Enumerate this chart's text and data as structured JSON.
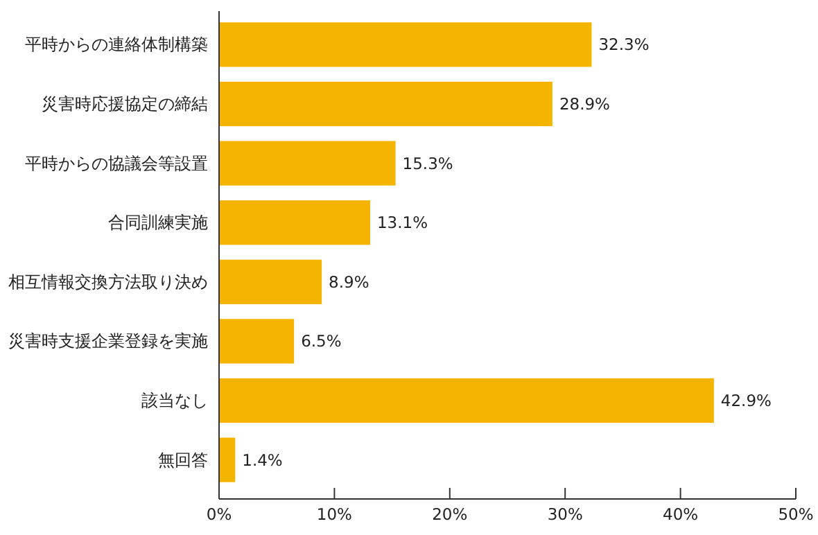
{
  "chart_data": {
    "type": "bar",
    "orientation": "horizontal",
    "categories": [
      "平時からの連絡体制構築",
      "災害時応援協定の締結",
      "平時からの協議会等設置",
      "合同訓練実施",
      "相互情報交換方法取り決め",
      "災害時支援企業登録を実施",
      "該当なし",
      "無回答"
    ],
    "values": [
      32.3,
      28.9,
      15.3,
      13.1,
      8.9,
      6.5,
      42.9,
      1.4
    ],
    "value_labels": [
      "32.3%",
      "28.9%",
      "15.3%",
      "13.1%",
      "8.9%",
      "6.5%",
      "42.9%",
      "1.4%"
    ],
    "color": "#f5b400",
    "xlim": [
      0,
      50
    ],
    "xticks": [
      {
        "value": 0,
        "label": "0%"
      },
      {
        "value": 10,
        "label": "10%"
      },
      {
        "value": 20,
        "label": "20%"
      },
      {
        "value": 30,
        "label": "30%"
      },
      {
        "value": 40,
        "label": "40%"
      },
      {
        "value": 50,
        "label": "50%"
      }
    ],
    "grid": false
  }
}
